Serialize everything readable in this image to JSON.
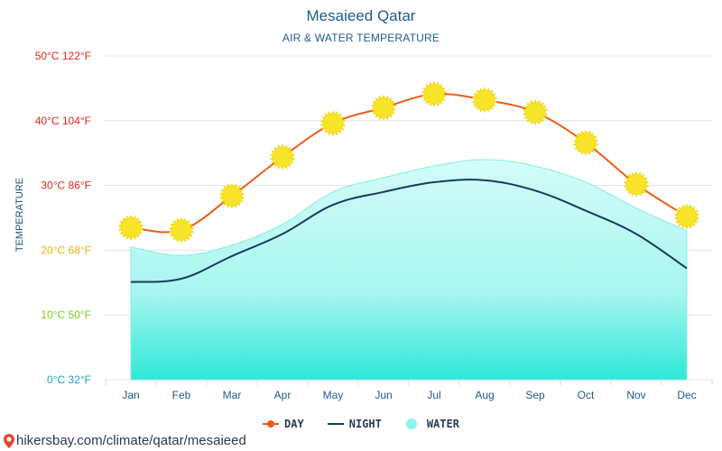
{
  "header": {
    "title": "Mesaieed Qatar",
    "subtitle": "AIR & WATER TEMPERATURE"
  },
  "axis": {
    "ylabel": "TEMPERATURE"
  },
  "legend": {
    "day": "DAY",
    "night": "NIGHT",
    "water": "WATER"
  },
  "footer": {
    "source": "hikersbay.com/climate/qatar/mesaieed"
  },
  "colors": {
    "day": "#f05a1a",
    "night": "#173c5a",
    "water_top": "#c8fbf7",
    "water_bottom": "#2de8d8",
    "sun": "#f6e21f"
  },
  "chart_data": {
    "type": "line",
    "title": "Mesaieed Qatar",
    "subtitle": "AIR & WATER TEMPERATURE",
    "ylabel": "TEMPERATURE",
    "xlabel": "",
    "ylim": [
      0,
      50
    ],
    "categories": [
      "Jan",
      "Feb",
      "Mar",
      "Apr",
      "May",
      "Jun",
      "Jul",
      "Aug",
      "Sep",
      "Oct",
      "Nov",
      "Dec"
    ],
    "y_ticks": [
      {
        "value": 0,
        "label": "0°C 32°F",
        "color": "#1ea0c8"
      },
      {
        "value": 10,
        "label": "10°C 50°F",
        "color": "#7acc1e"
      },
      {
        "value": 20,
        "label": "20°C 68°F",
        "color": "#e6b40a"
      },
      {
        "value": 30,
        "label": "30°C 86°F",
        "color": "#e0281e"
      },
      {
        "value": 40,
        "label": "40°C 104°F",
        "color": "#e0281e"
      },
      {
        "value": 50,
        "label": "50°C 122°F",
        "color": "#e0281e"
      }
    ],
    "series": [
      {
        "name": "DAY",
        "type": "line",
        "values": [
          23.5,
          23.1,
          28.4,
          34.4,
          39.6,
          42.0,
          44.1,
          43.2,
          41.3,
          36.6,
          30.2,
          25.2
        ]
      },
      {
        "name": "NIGHT",
        "type": "line",
        "values": [
          15.1,
          15.6,
          19.1,
          22.5,
          27.0,
          29.0,
          30.5,
          30.8,
          29.2,
          26.1,
          22.5,
          17.2
        ]
      },
      {
        "name": "WATER",
        "type": "area",
        "values": [
          20.5,
          19.2,
          20.8,
          24.0,
          29.0,
          31.2,
          33.0,
          34.0,
          33.0,
          30.5,
          26.5,
          23.0
        ]
      }
    ]
  }
}
